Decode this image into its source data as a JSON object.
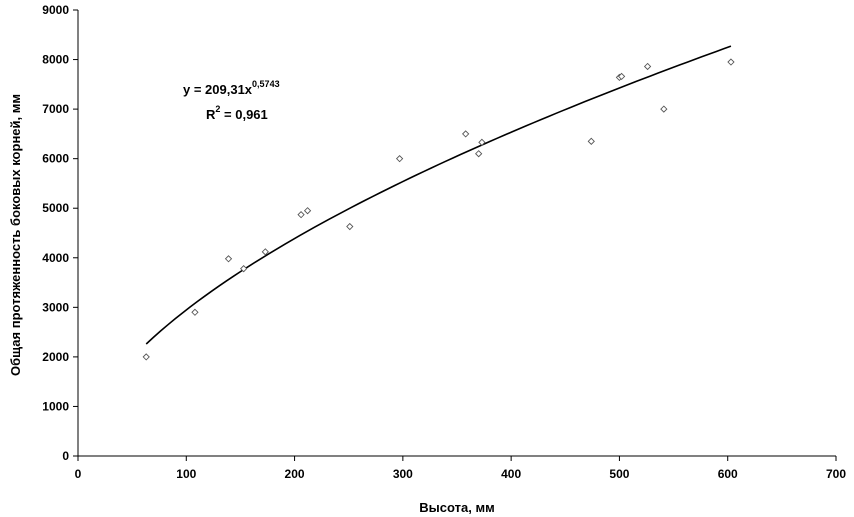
{
  "chart_data": {
    "type": "scatter",
    "title": "",
    "xlabel": "Высота, мм",
    "ylabel": "Общая протяженность боковых корней, мм",
    "xlim": [
      0,
      700
    ],
    "ylim": [
      0,
      9000
    ],
    "x_ticks": [
      0,
      100,
      200,
      300,
      400,
      500,
      600,
      700
    ],
    "y_ticks": [
      0,
      1000,
      2000,
      3000,
      4000,
      5000,
      6000,
      7000,
      8000,
      9000
    ],
    "grid": false,
    "series": [
      {
        "points": [
          {
            "x": 63,
            "y": 2000
          },
          {
            "x": 108,
            "y": 2900
          },
          {
            "x": 139,
            "y": 3980
          },
          {
            "x": 153,
            "y": 3780
          },
          {
            "x": 173,
            "y": 4120
          },
          {
            "x": 206,
            "y": 4870
          },
          {
            "x": 212,
            "y": 4950
          },
          {
            "x": 251,
            "y": 4630
          },
          {
            "x": 297,
            "y": 6000
          },
          {
            "x": 358,
            "y": 6500
          },
          {
            "x": 370,
            "y": 6100
          },
          {
            "x": 373,
            "y": 6330
          },
          {
            "x": 474,
            "y": 6350
          },
          {
            "x": 500,
            "y": 7640
          },
          {
            "x": 502,
            "y": 7660
          },
          {
            "x": 526,
            "y": 7860
          },
          {
            "x": 541,
            "y": 7000
          },
          {
            "x": 603,
            "y": 7950
          }
        ]
      }
    ],
    "trendline": {
      "type": "power",
      "a": 209.31,
      "b": 0.5743,
      "x_range": [
        63,
        603
      ],
      "equation_main": "y = 209,31x",
      "equation_exponent": "0,5743",
      "r2_main": "R",
      "r2_exponent": "2",
      "r2_value": " = 0,961"
    }
  }
}
